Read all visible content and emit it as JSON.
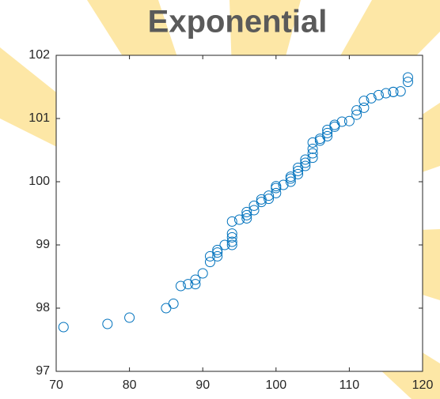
{
  "chart_data": {
    "type": "scatter",
    "title": "Exponential",
    "x": [
      71,
      77,
      80,
      85,
      86,
      87,
      88,
      89,
      89,
      90,
      91,
      91,
      92,
      92,
      92,
      93,
      94,
      94,
      94,
      94,
      94,
      95,
      96,
      96,
      96,
      97,
      97,
      98,
      98,
      99,
      99,
      100,
      100,
      100,
      101,
      102,
      102,
      102,
      103,
      103,
      103,
      104,
      104,
      104,
      105,
      105,
      105,
      105,
      106,
      106,
      107,
      107,
      107,
      108,
      108,
      109,
      110,
      111,
      111,
      112,
      112,
      113,
      114,
      115,
      116,
      116,
      117,
      118,
      118
    ],
    "series": [
      {
        "color": "#0072bd",
        "values": [
          97.7,
          97.75,
          97.85,
          98.0,
          98.07,
          98.35,
          98.38,
          98.38,
          98.45,
          98.55,
          98.73,
          98.82,
          98.82,
          98.88,
          98.92,
          99.0,
          99.0,
          99.05,
          99.12,
          99.18,
          99.37,
          99.4,
          99.42,
          99.47,
          99.52,
          99.55,
          99.62,
          99.68,
          99.72,
          99.73,
          99.78,
          99.82,
          99.9,
          99.93,
          99.95,
          100.0,
          100.05,
          100.08,
          100.12,
          100.17,
          100.22,
          100.25,
          100.3,
          100.35,
          100.38,
          100.45,
          100.52,
          100.62,
          100.65,
          100.68,
          100.72,
          100.77,
          100.82,
          100.87,
          100.9,
          100.95,
          100.96,
          101.06,
          101.13,
          101.17,
          101.28,
          101.32,
          101.37,
          101.4,
          101.42,
          101.42,
          101.43,
          101.58,
          101.65
        ]
      }
    ],
    "xlim": [
      70,
      120
    ],
    "xticks": [
      70,
      80,
      90,
      100,
      110,
      120
    ],
    "ylim": [
      97,
      102
    ],
    "yticks": [
      97,
      98,
      99,
      100,
      101,
      102
    ]
  }
}
